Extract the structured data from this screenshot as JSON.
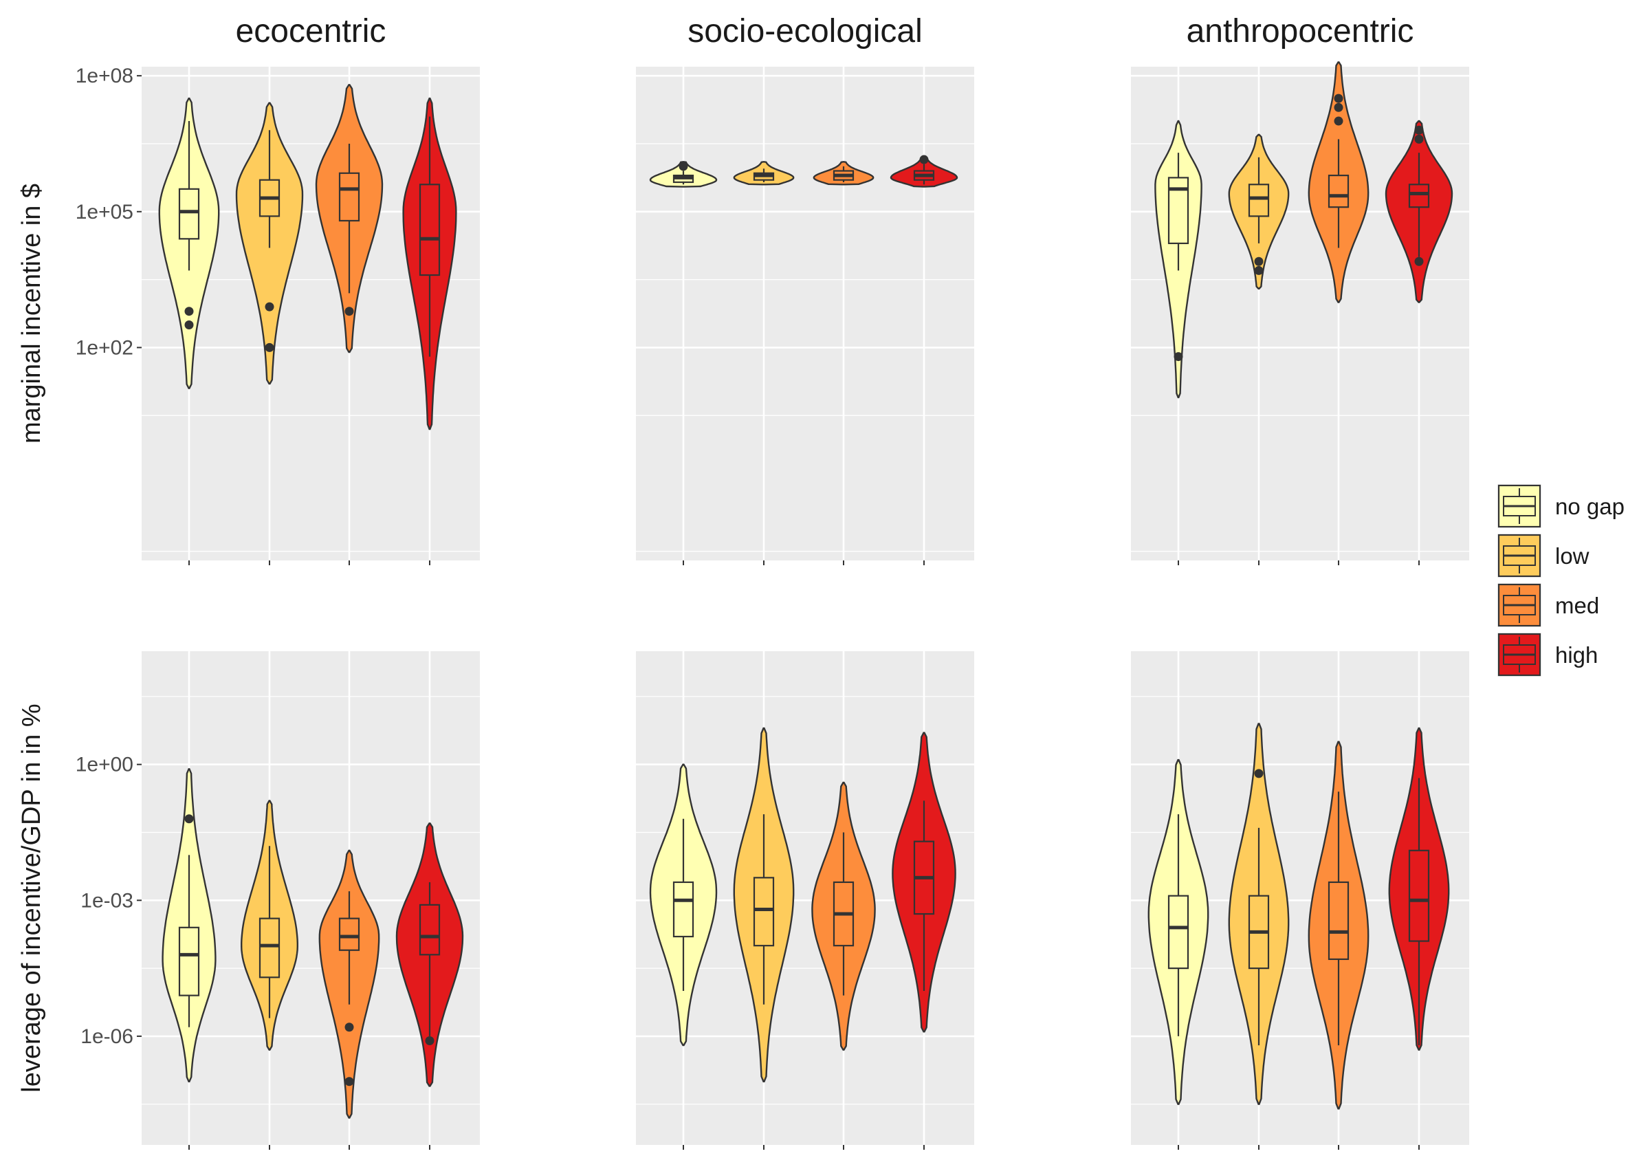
{
  "chart_data": {
    "type": "violin",
    "facet_columns": [
      "ecocentric",
      "socio-ecological",
      "anthropocentric"
    ],
    "groups": [
      "no gap",
      "low",
      "med",
      "high"
    ],
    "colors": {
      "no gap": "#FFFFB2",
      "low": "#FECC5C",
      "med": "#FD8D3C",
      "high": "#E31A1C"
    },
    "outline_color": "#333333",
    "panel_background": "#EBEBEB",
    "grid": true,
    "legend_position": "right",
    "scale": "log10",
    "rows": [
      {
        "ylabel": "marginal incentive in $",
        "ylim_log10": [
          -2.7,
          8.2
        ],
        "y_ticks_log10": [
          2,
          5,
          8
        ],
        "y_tick_labels": [
          "1e+02",
          "1e+05",
          "1e+08"
        ],
        "panels": [
          {
            "column": "ecocentric",
            "violins": [
              {
                "group": "no gap",
                "min": 1.1,
                "max": 7.5,
                "q1": 4.4,
                "median": 5.0,
                "q3": 5.5,
                "wlo": 3.7,
                "whi": 7.0,
                "mode": 5.0,
                "width": 0.9,
                "outliers": [
                  2.8,
                  2.5
                ]
              },
              {
                "group": "low",
                "min": 1.2,
                "max": 7.4,
                "q1": 4.9,
                "median": 5.3,
                "q3": 5.7,
                "wlo": 4.2,
                "whi": 6.8,
                "mode": 5.4,
                "width": 1.0,
                "outliers": [
                  2.9,
                  2.0
                ]
              },
              {
                "group": "med",
                "min": 1.9,
                "max": 7.8,
                "q1": 4.8,
                "median": 5.5,
                "q3": 5.85,
                "wlo": 3.2,
                "whi": 6.5,
                "mode": 5.6,
                "width": 1.0,
                "outliers": [
                  2.8
                ]
              },
              {
                "group": "high",
                "min": 0.2,
                "max": 7.5,
                "q1": 3.6,
                "median": 4.4,
                "q3": 5.6,
                "wlo": 1.8,
                "whi": 7.1,
                "mode": 5.0,
                "width": 0.8,
                "outliers": []
              }
            ]
          },
          {
            "column": "socio-ecological",
            "violins": [
              {
                "group": "no gap",
                "min": 5.55,
                "max": 6.1,
                "q1": 5.65,
                "median": 5.75,
                "q3": 5.8,
                "wlo": 5.6,
                "whi": 5.9,
                "mode": 5.7,
                "width": 1.0,
                "outliers": [
                  6.0
                ]
              },
              {
                "group": "low",
                "min": 5.6,
                "max": 6.1,
                "q1": 5.7,
                "median": 5.8,
                "q3": 5.85,
                "wlo": 5.65,
                "whi": 5.95,
                "mode": 5.75,
                "width": 0.9,
                "outliers": []
              },
              {
                "group": "med",
                "min": 5.6,
                "max": 6.1,
                "q1": 5.7,
                "median": 5.8,
                "q3": 5.9,
                "wlo": 5.65,
                "whi": 6.0,
                "mode": 5.75,
                "width": 0.9,
                "outliers": []
              },
              {
                "group": "high",
                "min": 5.55,
                "max": 6.2,
                "q1": 5.7,
                "median": 5.8,
                "q3": 5.9,
                "wlo": 5.6,
                "whi": 6.05,
                "mode": 5.75,
                "width": 1.0,
                "outliers": [
                  6.15
                ]
              }
            ]
          },
          {
            "column": "anthropocentric",
            "violins": [
              {
                "group": "no gap",
                "min": 0.9,
                "max": 7.0,
                "q1": 4.3,
                "median": 5.5,
                "q3": 5.75,
                "wlo": 3.7,
                "whi": 6.3,
                "mode": 5.6,
                "width": 0.7,
                "outliers": [
                  1.8
                ]
              },
              {
                "group": "low",
                "min": 3.3,
                "max": 6.7,
                "q1": 4.9,
                "median": 5.3,
                "q3": 5.6,
                "wlo": 4.3,
                "whi": 6.2,
                "mode": 5.4,
                "width": 0.9,
                "outliers": [
                  3.9,
                  3.7
                ]
              },
              {
                "group": "med",
                "min": 3.0,
                "max": 8.3,
                "q1": 5.1,
                "median": 5.35,
                "q3": 5.8,
                "wlo": 4.2,
                "whi": 6.6,
                "mode": 5.4,
                "width": 0.9,
                "outliers": [
                  7.3,
                  7.0,
                  7.5
                ]
              },
              {
                "group": "high",
                "min": 3.0,
                "max": 7.0,
                "q1": 5.1,
                "median": 5.4,
                "q3": 5.6,
                "wlo": 4.0,
                "whi": 6.3,
                "mode": 5.4,
                "width": 1.0,
                "outliers": [
                  6.6,
                  6.8,
                  3.9
                ]
              }
            ]
          }
        ]
      },
      {
        "ylabel": "leverage of incentive/GDP in in %",
        "ylim_log10": [
          -8.4,
          2.5
        ],
        "y_ticks_log10": [
          0,
          -3,
          -6
        ],
        "y_tick_labels": [
          "1e+00",
          "1e-03",
          "1e-06"
        ],
        "panels": [
          {
            "column": "ecocentric",
            "violins": [
              {
                "group": "no gap",
                "min": -7.0,
                "max": -0.1,
                "q1": -5.1,
                "median": -4.2,
                "q3": -3.6,
                "wlo": -5.8,
                "whi": -2.0,
                "mode": -4.3,
                "width": 0.8,
                "outliers": [
                  -1.2
                ]
              },
              {
                "group": "low",
                "min": -6.3,
                "max": -0.8,
                "q1": -4.7,
                "median": -4.0,
                "q3": -3.4,
                "wlo": -5.6,
                "whi": -1.8,
                "mode": -4.0,
                "width": 0.85,
                "outliers": []
              },
              {
                "group": "med",
                "min": -7.8,
                "max": -1.9,
                "q1": -4.1,
                "median": -3.8,
                "q3": -3.4,
                "wlo": -5.3,
                "whi": -2.8,
                "mode": -3.8,
                "width": 0.9,
                "outliers": [
                  -5.8,
                  -7.0
                ]
              },
              {
                "group": "high",
                "min": -7.1,
                "max": -1.3,
                "q1": -4.2,
                "median": -3.8,
                "q3": -3.1,
                "wlo": -6.0,
                "whi": -2.6,
                "mode": -3.8,
                "width": 1.0,
                "outliers": [
                  -6.1
                ]
              }
            ]
          },
          {
            "column": "socio-ecological",
            "violins": [
              {
                "group": "no gap",
                "min": -6.2,
                "max": 0.0,
                "q1": -3.8,
                "median": -3.0,
                "q3": -2.6,
                "wlo": -5.0,
                "whi": -1.2,
                "mode": -2.8,
                "width": 1.0,
                "outliers": []
              },
              {
                "group": "low",
                "min": -7.0,
                "max": 0.8,
                "q1": -4.0,
                "median": -3.2,
                "q3": -2.5,
                "wlo": -5.3,
                "whi": -1.1,
                "mode": -2.8,
                "width": 0.9,
                "outliers": []
              },
              {
                "group": "med",
                "min": -6.3,
                "max": -0.4,
                "q1": -4.0,
                "median": -3.3,
                "q3": -2.6,
                "wlo": -5.1,
                "whi": -1.5,
                "mode": -3.2,
                "width": 0.95,
                "outliers": []
              },
              {
                "group": "high",
                "min": -5.9,
                "max": 0.7,
                "q1": -3.3,
                "median": -2.5,
                "q3": -1.7,
                "wlo": -5.0,
                "whi": -0.8,
                "mode": -2.4,
                "width": 0.95,
                "outliers": []
              }
            ]
          },
          {
            "column": "anthropocentric",
            "violins": [
              {
                "group": "no gap",
                "min": -7.5,
                "max": 0.1,
                "q1": -4.5,
                "median": -3.6,
                "q3": -2.9,
                "wlo": -6.0,
                "whi": -1.1,
                "mode": -3.3,
                "width": 0.9,
                "outliers": []
              },
              {
                "group": "low",
                "min": -7.5,
                "max": 0.9,
                "q1": -4.5,
                "median": -3.7,
                "q3": -2.9,
                "wlo": -6.2,
                "whi": -1.4,
                "mode": -3.5,
                "width": 0.9,
                "outliers": [
                  -0.2
                ]
              },
              {
                "group": "med",
                "min": -7.6,
                "max": 0.5,
                "q1": -4.3,
                "median": -3.7,
                "q3": -2.6,
                "wlo": -6.2,
                "whi": -0.6,
                "mode": -3.8,
                "width": 0.9,
                "outliers": []
              },
              {
                "group": "high",
                "min": -6.3,
                "max": 0.8,
                "q1": -3.9,
                "median": -3.0,
                "q3": -1.9,
                "wlo": -6.2,
                "whi": -0.3,
                "mode": -2.8,
                "width": 0.9,
                "outliers": []
              }
            ]
          }
        ]
      }
    ]
  }
}
